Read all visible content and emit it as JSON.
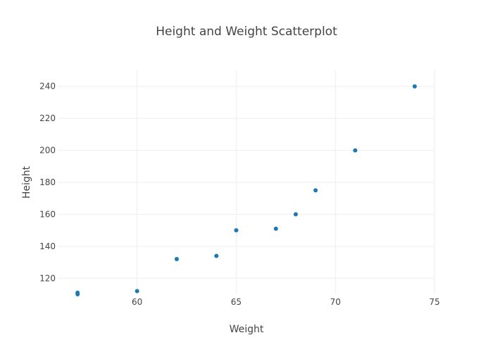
{
  "chart_data": {
    "type": "scatter",
    "title": "Height and Weight Scatterplot",
    "xlabel": "Weight",
    "ylabel": "Height",
    "xlim": [
      56,
      75
    ],
    "ylim": [
      110,
      250
    ],
    "x_ticks": [
      60,
      65,
      70,
      75
    ],
    "y_ticks": [
      120,
      140,
      160,
      180,
      200,
      220,
      240
    ],
    "grid": true,
    "colors": {
      "marker": "#1f77b4",
      "grid": "#eeeeee",
      "text": "#444444"
    },
    "series": [
      {
        "x": [
          57,
          57,
          60,
          62,
          64,
          65,
          67,
          68,
          69,
          71,
          74
        ],
        "y": [
          110,
          111,
          112,
          132,
          134,
          150,
          151,
          160,
          175,
          200,
          240
        ]
      }
    ]
  }
}
